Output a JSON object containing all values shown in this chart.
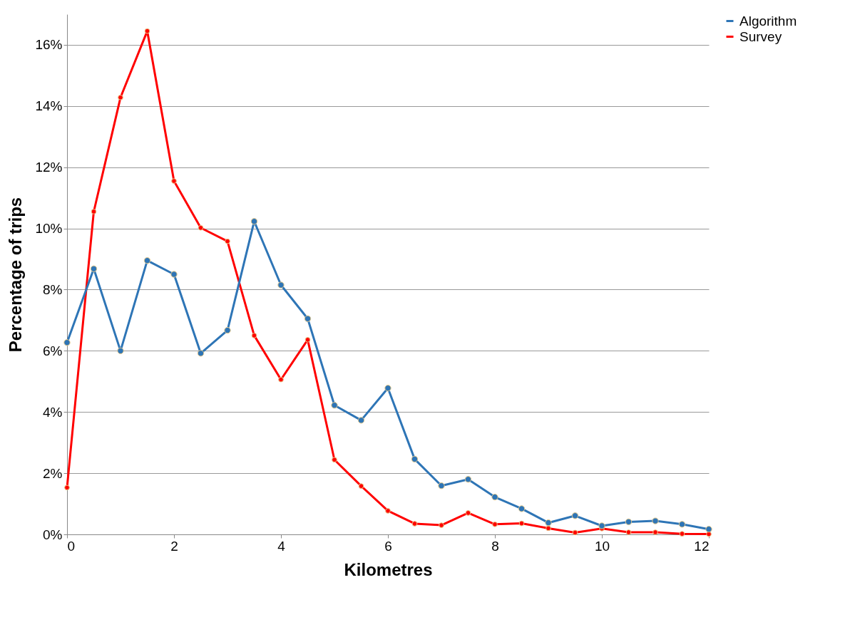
{
  "chart_data": {
    "type": "line",
    "xlabel": "Kilometres",
    "ylabel": "Percentage of trips",
    "x": [
      0,
      0.5,
      1,
      1.5,
      2,
      2.5,
      3,
      3.5,
      4,
      4.5,
      5,
      5.5,
      6,
      6.5,
      7,
      7.5,
      8,
      8.5,
      9,
      9.5,
      10,
      10.5,
      11,
      11.5,
      12
    ],
    "series": [
      {
        "name": "Algorithm",
        "color": "#2e75b6",
        "values": [
          6.27,
          8.68,
          6.0,
          8.95,
          8.5,
          5.92,
          6.67,
          10.23,
          8.15,
          7.05,
          4.22,
          3.73,
          4.78,
          2.46,
          1.59,
          1.8,
          1.22,
          0.84,
          0.38,
          0.61,
          0.28,
          0.41,
          0.44,
          0.33,
          0.17
        ]
      },
      {
        "name": "Survey",
        "color": "#ff0000",
        "values": [
          1.53,
          10.55,
          14.28,
          16.45,
          11.55,
          10.02,
          9.58,
          6.5,
          5.06,
          6.36,
          2.44,
          1.58,
          0.77,
          0.35,
          0.3,
          0.7,
          0.33,
          0.36,
          0.2,
          0.06,
          0.19,
          0.07,
          0.07,
          0.02,
          0.01
        ]
      }
    ],
    "xlim": [
      0,
      12
    ],
    "xticks": [
      0,
      2,
      4,
      6,
      8,
      10,
      12
    ],
    "ylim": [
      0,
      17
    ],
    "yticks": [
      {
        "value": 0,
        "label": "0%"
      },
      {
        "value": 2,
        "label": "2%"
      },
      {
        "value": 4,
        "label": "4%"
      },
      {
        "value": 6,
        "label": "6%"
      },
      {
        "value": 8,
        "label": "8%"
      },
      {
        "value": 10,
        "label": "10%"
      },
      {
        "value": 12,
        "label": "12%"
      },
      {
        "value": 14,
        "label": "14%"
      },
      {
        "value": 16,
        "label": "16%"
      }
    ],
    "grid": "y",
    "legend": "right",
    "marker": "circle",
    "line_style": "solid"
  }
}
